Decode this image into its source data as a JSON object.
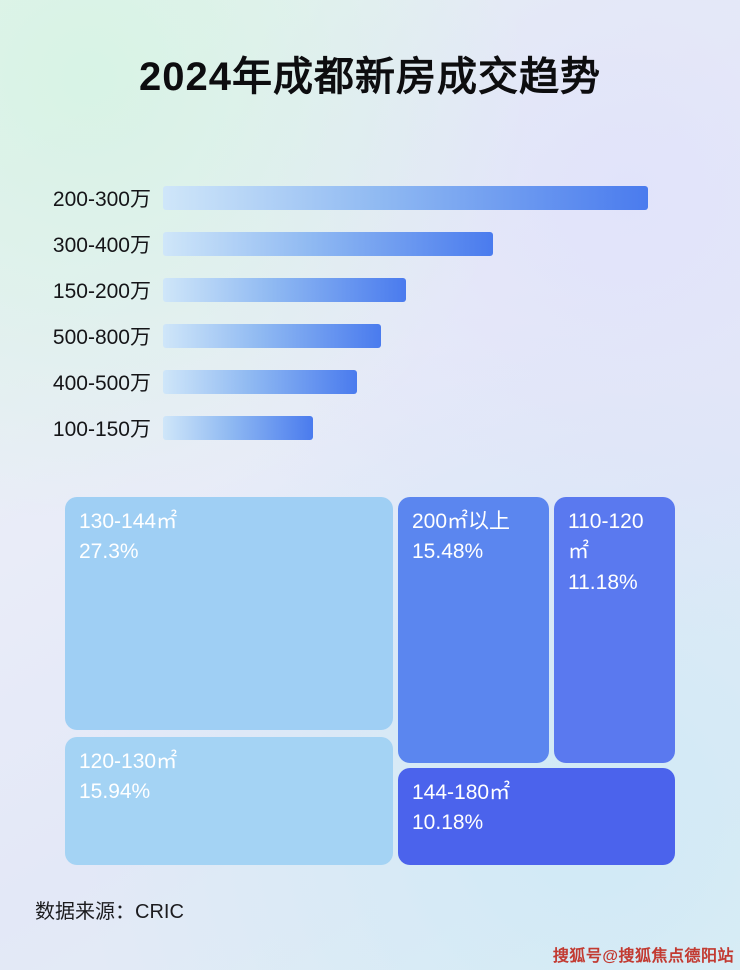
{
  "title": "2024年成都新房成交趋势",
  "footer": {
    "source_label": "数据来源：CRIC"
  },
  "watermark": "搜狐号@搜狐焦点德阳站",
  "colors": {
    "bar_gradient_start": "#cfe6f9",
    "bar_gradient_end": "#4a7bee",
    "treemap_light_blue": "#9fcff4",
    "treemap_light_blue_2": "#a4d3f4",
    "treemap_medium_blue": "#5b86ef",
    "treemap_blue": "#5a79ef",
    "treemap_dark_blue": "#4b63ec",
    "title_color": "#0d0d0f",
    "watermark_color": "#c23a31"
  },
  "chart_data": [
    {
      "type": "bar",
      "orientation": "horizontal",
      "title": "2024年成都新房成交趋势",
      "categories": [
        "200-300万",
        "300-400万",
        "150-200万",
        "500-800万",
        "400-500万",
        "100-150万"
      ],
      "values": [
        100,
        68,
        50,
        45,
        40,
        31
      ],
      "value_note": "no numeric axis shown in image; values are relative bar lengths with longest bar = 100",
      "xlabel": "",
      "ylabel": "",
      "grid": false,
      "legend": false
    },
    {
      "type": "treemap",
      "title": "",
      "items": [
        {
          "label": "130-144㎡",
          "value_pct": 27.3,
          "display": "27.3%",
          "color": "#9fcff4"
        },
        {
          "label": "120-130㎡",
          "value_pct": 15.94,
          "display": "15.94%",
          "color": "#a4d3f4"
        },
        {
          "label": "200㎡以上",
          "value_pct": 15.48,
          "display": "15.48%",
          "color": "#5b86ef"
        },
        {
          "label": "110-120㎡",
          "value_pct": 11.18,
          "display": "11.18%",
          "color": "#5a79ef"
        },
        {
          "label": "144-180㎡",
          "value_pct": 10.18,
          "display": "10.18%",
          "color": "#4b63ec"
        }
      ]
    }
  ]
}
